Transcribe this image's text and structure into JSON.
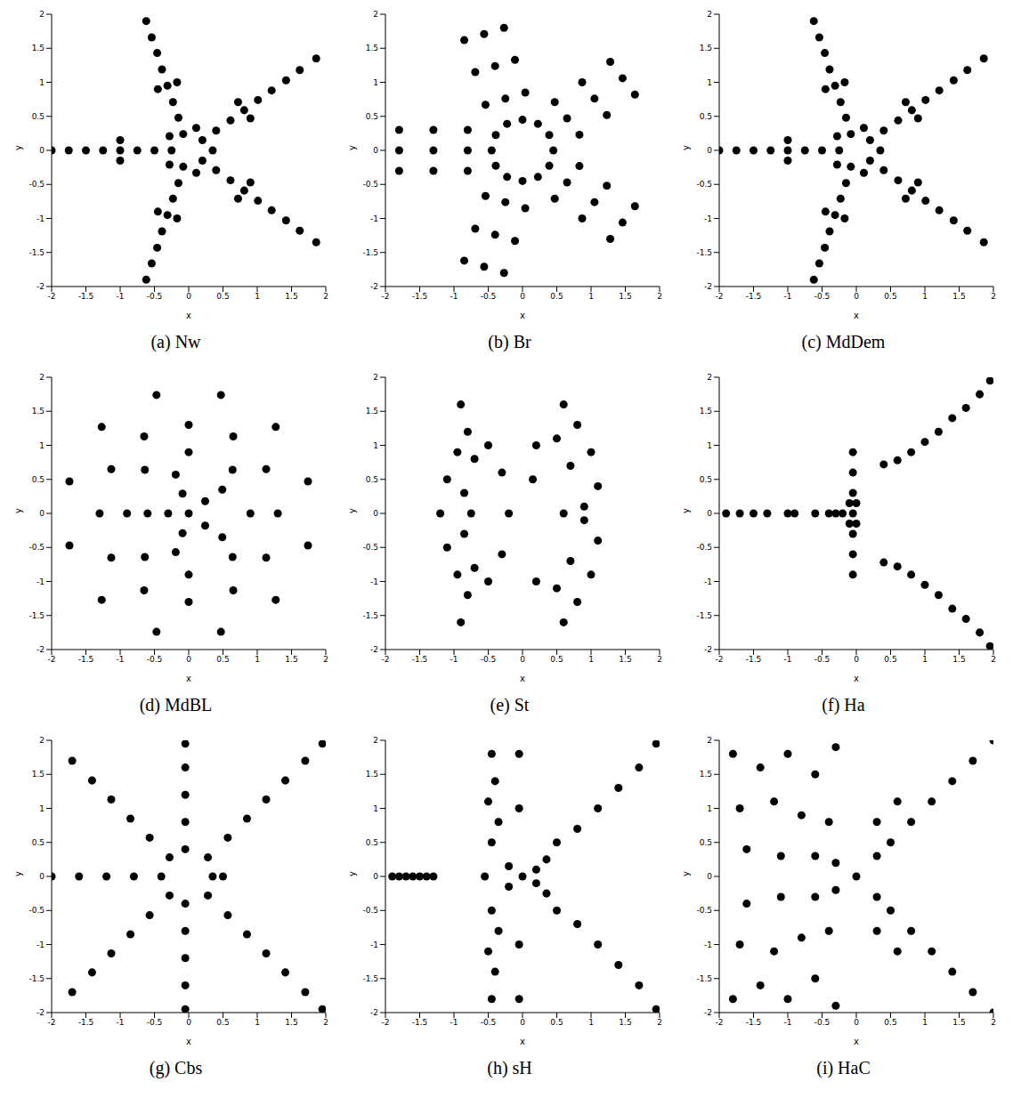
{
  "chart_data": [
    {
      "type": "scatter",
      "title": "(a) Nw",
      "x_label": "x",
      "y_label": "y",
      "color": "#000000",
      "marker": "dot",
      "grid": false,
      "xlim": [
        -2,
        2
      ],
      "ylim": [
        -2,
        2
      ],
      "xticks": [
        -2,
        -1.5,
        -1,
        -0.5,
        0,
        0.5,
        1,
        1.5,
        2
      ],
      "yticks": [
        -2,
        -1.5,
        -1,
        -0.5,
        0,
        0.5,
        1,
        1.5,
        2
      ],
      "x": [
        0.2,
        0.4,
        0.61,
        0.81,
        1.01,
        1.21,
        1.42,
        1.62,
        1.86,
        -0.08,
        -0.15,
        -0.23,
        -0.31,
        -0.39,
        -0.46,
        -0.54,
        -0.62,
        -0.25,
        -0.5,
        -0.75,
        -1,
        -1.25,
        -1.5,
        -1.75,
        -2,
        -0.08,
        -0.15,
        -0.23,
        -0.31,
        -0.39,
        -0.46,
        -0.54,
        -0.62,
        0.2,
        0.4,
        0.61,
        0.81,
        1.01,
        1.21,
        1.42,
        1.62,
        1.86,
        0.35,
        0.11,
        -0.28,
        -0.28,
        0.11,
        0.72,
        0.9,
        -0.45,
        -0.17,
        -1,
        -1,
        -0.45,
        -0.17,
        0.72,
        0.9
      ],
      "y": [
        0.15,
        0.29,
        0.44,
        0.59,
        0.74,
        0.88,
        1.03,
        1.18,
        1.35,
        0.24,
        0.48,
        0.71,
        0.95,
        1.19,
        1.43,
        1.66,
        1.9,
        0,
        0,
        0,
        0,
        0,
        0,
        0,
        0,
        -0.24,
        -0.48,
        -0.71,
        -0.95,
        -1.19,
        -1.43,
        -1.66,
        -1.9,
        -0.15,
        -0.29,
        -0.44,
        -0.59,
        -0.74,
        -0.88,
        -1.03,
        -1.18,
        -1.35,
        0,
        0.33,
        0.21,
        -0.21,
        -0.33,
        0.71,
        0.47,
        0.9,
        1,
        0.15,
        -0.15,
        -0.9,
        -1,
        -0.71,
        -0.47
      ]
    },
    {
      "type": "scatter",
      "title": "(b) Br",
      "x_label": "x",
      "y_label": "y",
      "color": "#000000",
      "marker": "dot",
      "grid": false,
      "xlim": [
        -2,
        2
      ],
      "ylim": [
        -2,
        2
      ],
      "xticks": [
        -2,
        -1.5,
        -1,
        -0.5,
        0,
        0.5,
        1,
        1.5,
        2
      ],
      "yticks": [
        -2,
        -1.5,
        -1,
        -0.5,
        0,
        0.5,
        1,
        1.5,
        2
      ],
      "x": [
        0.45,
        0.39,
        0.225,
        0,
        -0.225,
        -0.39,
        -0.45,
        -0.39,
        -0.225,
        0,
        0.225,
        0.39,
        0.65,
        1.05,
        1.46,
        0.47,
        0.83,
        0.87,
        1.23,
        1.28,
        1.64,
        -0.25,
        -0.4,
        -0.56,
        -0.54,
        0.04,
        -0.69,
        -0.11,
        -0.85,
        -0.27,
        -0.8,
        -1.3,
        -1.8,
        -0.8,
        -0.8,
        -1.3,
        -1.3,
        -1.8,
        -1.8,
        -0.25,
        -0.4,
        -0.56,
        -0.54,
        0.04,
        -0.69,
        -0.11,
        -0.85,
        -0.27,
        0.65,
        1.05,
        1.46,
        0.47,
        0.83,
        0.87,
        1.23,
        1.28,
        1.64
      ],
      "y": [
        0,
        0.225,
        0.39,
        0.45,
        0.39,
        0.225,
        0,
        -0.225,
        -0.39,
        -0.45,
        -0.39,
        -0.225,
        0.47,
        0.76,
        1.06,
        0.71,
        0.23,
        1,
        0.52,
        1.3,
        0.82,
        0.76,
        1.24,
        1.71,
        0.67,
        0.85,
        1.15,
        1.33,
        1.62,
        1.8,
        0,
        0,
        0,
        0.3,
        -0.3,
        0.3,
        -0.3,
        0.3,
        -0.3,
        -0.76,
        -1.24,
        -1.71,
        -0.67,
        -0.85,
        -1.15,
        -1.33,
        -1.62,
        -1.8,
        -0.47,
        -0.76,
        -1.06,
        -0.71,
        -0.23,
        -1,
        -0.52,
        -1.3,
        -0.82
      ]
    },
    {
      "type": "scatter",
      "title": "(c) MdDem",
      "x_label": "x",
      "y_label": "y",
      "color": "#000000",
      "marker": "dot",
      "grid": false,
      "xlim": [
        -2,
        2
      ],
      "ylim": [
        -2,
        2
      ],
      "xticks": [
        -2,
        -1.5,
        -1,
        -0.5,
        0,
        0.5,
        1,
        1.5,
        2
      ],
      "yticks": [
        -2,
        -1.5,
        -1,
        -0.5,
        0,
        0.5,
        1,
        1.5,
        2
      ],
      "x": [
        0.2,
        0.4,
        0.61,
        0.81,
        1.01,
        1.21,
        1.42,
        1.62,
        1.86,
        -0.08,
        -0.15,
        -0.23,
        -0.31,
        -0.39,
        -0.46,
        -0.54,
        -0.62,
        -0.25,
        -0.5,
        -0.75,
        -1,
        -1.25,
        -1.5,
        -1.75,
        -2,
        -0.08,
        -0.15,
        -0.23,
        -0.31,
        -0.39,
        -0.46,
        -0.54,
        -0.62,
        0.2,
        0.4,
        0.61,
        0.81,
        1.01,
        1.21,
        1.42,
        1.62,
        1.86,
        0.35,
        0.11,
        -0.28,
        -0.28,
        0.11,
        0.72,
        0.9,
        -0.45,
        -0.17,
        -1,
        -1,
        -0.45,
        -0.17,
        0.72,
        0.9
      ],
      "y": [
        0.15,
        0.29,
        0.44,
        0.59,
        0.74,
        0.88,
        1.03,
        1.18,
        1.35,
        0.24,
        0.48,
        0.71,
        0.95,
        1.19,
        1.43,
        1.66,
        1.9,
        0,
        0,
        0,
        0,
        0,
        0,
        0,
        0,
        -0.24,
        -0.48,
        -0.71,
        -0.95,
        -1.19,
        -1.43,
        -1.66,
        -1.9,
        -0.15,
        -0.29,
        -0.44,
        -0.59,
        -0.74,
        -0.88,
        -1.03,
        -1.18,
        -1.35,
        0,
        0.33,
        0.21,
        -0.21,
        -0.33,
        0.71,
        0.47,
        0.9,
        1,
        0.15,
        -0.15,
        -0.9,
        -1,
        -0.71,
        -0.47
      ]
    },
    {
      "type": "scatter",
      "title": "(d) MdBL",
      "x_label": "x",
      "y_label": "y",
      "color": "#000000",
      "marker": "dot",
      "grid": false,
      "xlim": [
        -2,
        2
      ],
      "ylim": [
        -2,
        2
      ],
      "xticks": [
        -2,
        -1.5,
        -1,
        -0.5,
        0,
        0.5,
        1,
        1.5,
        2
      ],
      "yticks": [
        -2,
        -1.5,
        -1,
        -0.5,
        0,
        0.5,
        1,
        1.5,
        2
      ],
      "x": [
        1.3,
        1.13,
        0.65,
        0,
        -0.65,
        -1.13,
        -1.3,
        -1.13,
        -0.65,
        0,
        0.65,
        1.13,
        1.74,
        1.27,
        0.47,
        -0.47,
        -1.27,
        -1.74,
        -1.74,
        -1.27,
        -0.47,
        0.47,
        1.27,
        1.74,
        0.9,
        0.64,
        0,
        -0.64,
        -0.9,
        -0.64,
        0,
        0.64,
        0.24,
        0.49,
        -0.09,
        -0.19,
        -0.3,
        -0.6,
        -0.09,
        -0.19,
        0.24,
        0.49,
        0
      ],
      "y": [
        0,
        0.65,
        1.13,
        1.3,
        1.13,
        0.65,
        0,
        -0.65,
        -1.13,
        -1.3,
        -1.13,
        -0.65,
        0.47,
        1.27,
        1.74,
        1.74,
        1.27,
        0.47,
        -0.47,
        -1.27,
        -1.74,
        -1.74,
        -1.27,
        -0.47,
        0,
        0.64,
        0.9,
        0.64,
        0,
        -0.64,
        -0.9,
        -0.64,
        0.18,
        0.35,
        0.29,
        0.57,
        0,
        0,
        -0.29,
        -0.57,
        -0.18,
        -0.35,
        0
      ]
    },
    {
      "type": "scatter",
      "title": "(e) St",
      "x_label": "x",
      "y_label": "y",
      "color": "#000000",
      "marker": "dot",
      "grid": false,
      "xlim": [
        -2,
        2
      ],
      "ylim": [
        -2,
        2
      ],
      "xticks": [
        -2,
        -1.5,
        -1,
        -0.5,
        0,
        0.5,
        1,
        1.5,
        2
      ],
      "yticks": [
        -2,
        -1.5,
        -1,
        -0.5,
        0,
        0.5,
        1,
        1.5,
        2
      ],
      "x": [
        -0.9,
        -0.8,
        -0.95,
        -0.7,
        -1.1,
        -0.85,
        -0.75,
        -1.2,
        -0.85,
        -1.1,
        -0.7,
        -0.95,
        -0.8,
        -0.9,
        -0.5,
        -0.5,
        -0.3,
        -0.3,
        0.6,
        0.8,
        0.5,
        1,
        0.7,
        1.1,
        0.9,
        0.6,
        0.9,
        1.1,
        0.7,
        1,
        0.5,
        0.8,
        0.6,
        0.2,
        0.2,
        0.15,
        -0.2
      ],
      "y": [
        1.6,
        1.2,
        0.9,
        0.8,
        0.5,
        0.3,
        0,
        0,
        -0.3,
        -0.5,
        -0.8,
        -0.9,
        -1.2,
        -1.6,
        1,
        -1,
        0.6,
        -0.6,
        1.6,
        1.3,
        1.1,
        0.9,
        0.7,
        0.4,
        0.1,
        0,
        -0.1,
        -0.4,
        -0.7,
        -0.9,
        -1.1,
        -1.3,
        -1.6,
        1,
        -1,
        0.5,
        0
      ]
    },
    {
      "type": "scatter",
      "title": "(f) Ha",
      "x_label": "x",
      "y_label": "y",
      "color": "#000000",
      "marker": "dot",
      "grid": false,
      "xlim": [
        -2,
        2
      ],
      "ylim": [
        -2,
        2
      ],
      "xticks": [
        -2,
        -1.5,
        -1,
        -0.5,
        0,
        0.5,
        1,
        1.5,
        2
      ],
      "yticks": [
        -2,
        -1.5,
        -1,
        -0.5,
        0,
        0.5,
        1,
        1.5,
        2
      ],
      "x": [
        -0.05,
        -0.05,
        -0.05,
        -0.05,
        -0.05,
        -0.05,
        -0.05,
        -0.1,
        0,
        -0.1,
        0,
        -1.9,
        -1.7,
        -1.5,
        -1.3,
        -1,
        -0.9,
        -0.6,
        -0.4,
        -0.3,
        -0.2,
        0.4,
        0.6,
        0.8,
        1,
        1.2,
        1.4,
        1.6,
        1.8,
        1.95,
        0.4,
        0.6,
        0.8,
        1,
        1.2,
        1.4,
        1.6,
        1.8,
        1.95
      ],
      "y": [
        0.9,
        0.6,
        0.3,
        0,
        -0.3,
        -0.6,
        -0.9,
        0.15,
        0.15,
        -0.15,
        -0.15,
        0,
        0,
        0,
        0,
        0,
        0,
        0,
        0,
        0,
        0,
        0.72,
        0.78,
        0.9,
        1.05,
        1.2,
        1.4,
        1.55,
        1.75,
        1.95,
        -0.72,
        -0.78,
        -0.9,
        -1.05,
        -1.2,
        -1.4,
        -1.55,
        -1.75,
        -1.95
      ]
    },
    {
      "type": "scatter",
      "title": "(g) Cbs",
      "x_label": "x",
      "y_label": "y",
      "color": "#000000",
      "marker": "dot",
      "grid": false,
      "xlim": [
        -2,
        2
      ],
      "ylim": [
        -2,
        2
      ],
      "xticks": [
        -2,
        -1.5,
        -1,
        -0.5,
        0,
        0.5,
        1,
        1.5,
        2
      ],
      "yticks": [
        -2,
        -1.5,
        -1,
        -0.5,
        0,
        0.5,
        1,
        1.5,
        2
      ],
      "x": [
        -0.4,
        -0.8,
        -1.2,
        -1.6,
        -2,
        -0.28,
        -0.57,
        -0.85,
        -1.13,
        -1.41,
        -1.7,
        -0.05,
        -0.05,
        -0.05,
        -0.05,
        -0.05,
        0.28,
        0.57,
        0.85,
        1.13,
        1.41,
        1.7,
        1.95,
        0.28,
        0.57,
        0.85,
        1.13,
        1.41,
        1.7,
        1.95,
        -0.05,
        -0.05,
        -0.05,
        -0.05,
        -0.05,
        -0.28,
        -0.57,
        -0.85,
        -1.13,
        -1.41,
        -1.7,
        0.35,
        0.5
      ],
      "y": [
        0,
        0,
        0,
        0,
        0,
        0.28,
        0.57,
        0.85,
        1.13,
        1.41,
        1.7,
        0.4,
        0.8,
        1.2,
        1.6,
        1.95,
        0.28,
        0.57,
        0.85,
        1.13,
        1.41,
        1.7,
        1.95,
        -0.28,
        -0.57,
        -0.85,
        -1.13,
        -1.41,
        -1.7,
        -1.95,
        -0.4,
        -0.8,
        -1.2,
        -1.6,
        -1.95,
        -0.28,
        -0.57,
        -0.85,
        -1.13,
        -1.41,
        -1.7,
        0,
        0
      ]
    },
    {
      "type": "scatter",
      "title": "(h) sH",
      "x_label": "x",
      "y_label": "y",
      "color": "#000000",
      "marker": "dot",
      "grid": false,
      "xlim": [
        -2,
        2
      ],
      "ylim": [
        -2,
        2
      ],
      "xticks": [
        -2,
        -1.5,
        -1,
        -0.5,
        0,
        0.5,
        1,
        1.5,
        2
      ],
      "yticks": [
        -2,
        -1.5,
        -1,
        -0.5,
        0,
        0.5,
        1,
        1.5,
        2
      ],
      "x": [
        -0.45,
        -0.4,
        -0.5,
        -0.35,
        -0.45,
        -0.45,
        -0.35,
        -0.5,
        -0.4,
        -0.45,
        -0.05,
        -0.05,
        -0.05,
        -0.05,
        0,
        0.2,
        0.2,
        -0.2,
        -0.2,
        0.35,
        0.35,
        -0.55,
        -1.9,
        -1.8,
        -1.7,
        -1.6,
        -1.5,
        -1.4,
        -1.3,
        0.5,
        0.8,
        1.1,
        1.4,
        1.7,
        1.95,
        0.5,
        0.8,
        1.1,
        1.4,
        1.7,
        1.95
      ],
      "y": [
        1.8,
        1.4,
        1.1,
        0.8,
        0.5,
        -0.5,
        -0.8,
        -1.1,
        -1.4,
        -1.8,
        1.8,
        1,
        -1,
        -1.8,
        0,
        0.1,
        -0.1,
        0.15,
        -0.15,
        0.25,
        -0.25,
        0,
        0,
        0,
        0,
        0,
        0,
        0,
        0,
        0.5,
        0.7,
        1,
        1.3,
        1.6,
        1.95,
        -0.5,
        -0.7,
        -1,
        -1.3,
        -1.6,
        -1.95
      ]
    },
    {
      "type": "scatter",
      "title": "(i) HaC",
      "x_label": "x",
      "y_label": "y",
      "color": "#000000",
      "marker": "dot",
      "grid": false,
      "xlim": [
        -2,
        2
      ],
      "ylim": [
        -2,
        2
      ],
      "xticks": [
        -2,
        -1.5,
        -1,
        -0.5,
        0,
        0.5,
        1,
        1.5,
        2
      ],
      "yticks": [
        -2,
        -1.5,
        -1,
        -0.5,
        0,
        0.5,
        1,
        1.5,
        2
      ],
      "x": [
        -1.8,
        -1.4,
        -1,
        -0.6,
        -0.3,
        -1.7,
        -1.2,
        -0.8,
        -0.4,
        -1.6,
        -1.1,
        -0.6,
        -0.3,
        -1.6,
        -1.1,
        -0.6,
        -0.3,
        -1.7,
        -1.2,
        -0.8,
        -0.4,
        -1.8,
        -1.4,
        -1,
        -0.6,
        -0.3,
        0,
        0.3,
        0.5,
        0.3,
        0.5,
        0.8,
        1.1,
        1.4,
        1.7,
        2,
        0.8,
        1.1,
        1.4,
        1.7,
        2,
        0.3,
        0.6,
        0.3,
        0.6
      ],
      "y": [
        1.8,
        1.6,
        1.8,
        1.5,
        1.9,
        1,
        1.1,
        0.9,
        0.8,
        0.4,
        0.3,
        0.3,
        0.2,
        -0.4,
        -0.3,
        -0.3,
        -0.2,
        -1,
        -1.1,
        -0.9,
        -0.8,
        -1.8,
        -1.6,
        -1.8,
        -1.5,
        -1.9,
        0,
        0.3,
        0.5,
        -0.3,
        -0.5,
        0.8,
        1.1,
        1.4,
        1.7,
        2,
        -0.8,
        -1.1,
        -1.4,
        -1.7,
        -2,
        0.8,
        1.1,
        -0.8,
        -1.1
      ]
    }
  ]
}
